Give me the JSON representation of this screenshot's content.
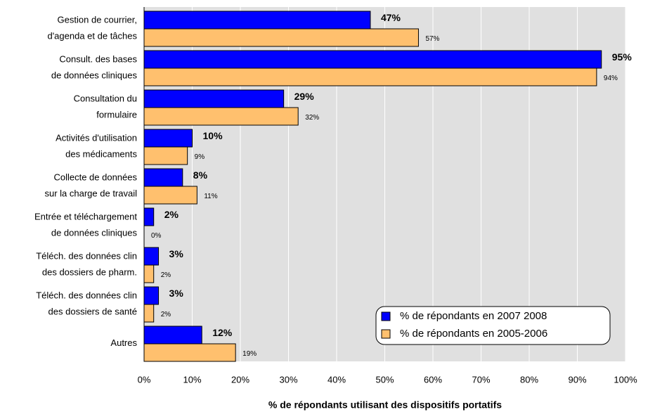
{
  "chart_data": {
    "type": "hbar",
    "x_label": "% de répondants utilisant des dispositifs portatifs",
    "categories": [
      "Gestion de courrier,\nd'agenda et de tâches",
      "Consult. des bases\nde données cliniques",
      "Consultation du\nformulaire",
      "Activités d'utilisation\ndes médicaments",
      "Collecte de données\nsur la charge de travail",
      "Entrée et téléchargement\nde données cliniques",
      "Téléch. des données clin\ndes dossiers de pharm.",
      "Téléch. des données clin\ndes dossiers de santé",
      "Autres"
    ],
    "series": [
      {
        "name": "% de répondants en 2007 2008",
        "color": "#0000ff",
        "values": [
          47,
          95,
          29,
          10,
          8,
          2,
          3,
          3,
          12
        ],
        "value_labels": [
          "47%",
          "95%",
          "29%",
          "10%",
          "8%",
          "2%",
          "3%",
          "3%",
          "12%"
        ]
      },
      {
        "name": "% de répondants en 2005-2006",
        "color": "#ffc06e",
        "values": [
          57,
          94,
          32,
          9,
          11,
          0,
          2,
          2,
          19
        ],
        "value_labels": [
          "57%",
          "94%",
          "32%",
          "9%",
          "11%",
          "0%",
          "2%",
          "2%",
          "19%"
        ]
      }
    ],
    "xlim": [
      0,
      100
    ],
    "xticks": [
      {
        "value": 0,
        "label": "0%"
      },
      {
        "value": 10,
        "label": "10%"
      },
      {
        "value": 20,
        "label": "20%"
      },
      {
        "value": 30,
        "label": "30%"
      },
      {
        "value": 40,
        "label": "40%"
      },
      {
        "value": 50,
        "label": "50%"
      },
      {
        "value": 60,
        "label": "60%"
      },
      {
        "value": 70,
        "label": "70%"
      },
      {
        "value": 80,
        "label": "80%"
      },
      {
        "value": 90,
        "label": "90%"
      },
      {
        "value": 100,
        "label": "100%"
      }
    ],
    "grid": true,
    "legend": "lower right"
  }
}
